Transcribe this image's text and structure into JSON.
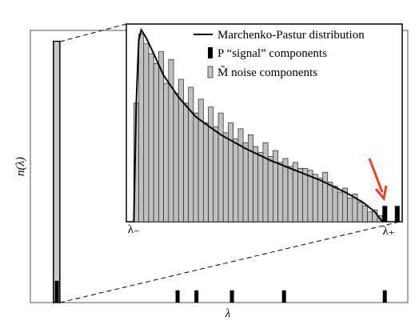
{
  "chart_data": [
    {
      "type": "spectrum",
      "xlabel": "λ",
      "ylabel": "n(λ)",
      "xlim": [
        0,
        1
      ],
      "ylim": [
        0,
        1
      ],
      "color": "#000000",
      "bulk_color": "#c8c8c8",
      "bulk": {
        "x": [
          0.061,
          0.078
        ],
        "value": 0.96
      },
      "spikes": {
        "x": [
          0.07,
          0.39,
          0.44,
          0.534,
          0.672,
          0.939
        ],
        "values": [
          0.08,
          0.045,
          0.045,
          0.045,
          0.045,
          0.045
        ]
      }
    },
    {
      "type": "histogram",
      "xlim": [
        -0.03,
        1.08
      ],
      "ylim": [
        0,
        1
      ],
      "color": "#c0c0c0",
      "bins": [
        0,
        0.02,
        0.04,
        0.06,
        0.08,
        0.1,
        0.12,
        0.14,
        0.16,
        0.18,
        0.2,
        0.22,
        0.24,
        0.26,
        0.28,
        0.3,
        0.32,
        0.34,
        0.36,
        0.38,
        0.4,
        0.42,
        0.44,
        0.46,
        0.48,
        0.5,
        0.52,
        0.54,
        0.56,
        0.58,
        0.6,
        0.62,
        0.64,
        0.66,
        0.68,
        0.7,
        0.72,
        0.74,
        0.76,
        0.78,
        0.8,
        0.82,
        0.84,
        0.86,
        0.88,
        0.9,
        0.92,
        0.94,
        0.96,
        0.98,
        1
      ],
      "values": [
        0.6,
        0.95,
        0.9,
        0.85,
        0.8,
        0.86,
        0.7,
        0.82,
        0.65,
        0.72,
        0.6,
        0.68,
        0.55,
        0.62,
        0.5,
        0.58,
        0.48,
        0.55,
        0.45,
        0.5,
        0.42,
        0.47,
        0.4,
        0.44,
        0.38,
        0.35,
        0.4,
        0.33,
        0.36,
        0.3,
        0.32,
        0.28,
        0.3,
        0.27,
        0.27,
        0.26,
        0.24,
        0.22,
        0.25,
        0.2,
        0.18,
        0.15,
        0.17,
        0.12,
        0.14,
        0.1,
        0.08,
        0.05,
        0.06,
        0.03
      ],
      "curve": {
        "name": "Marchenko-Pastur distribution",
        "color": "#000000",
        "x": [
          0,
          0.01,
          0.02,
          0.03,
          0.05,
          0.08,
          0.12,
          0.18,
          0.25,
          0.35,
          0.45,
          0.55,
          0.65,
          0.75,
          0.85,
          0.92,
          0.97,
          1.0
        ],
        "y": [
          0,
          0.6,
          0.92,
          0.97,
          0.93,
          0.85,
          0.74,
          0.63,
          0.53,
          0.44,
          0.37,
          0.31,
          0.26,
          0.21,
          0.15,
          0.1,
          0.05,
          0
        ]
      },
      "signal": {
        "name": "P “signal” components",
        "color": "#000000",
        "x": [
          1.01,
          1.06
        ],
        "values": [
          0.08,
          0.08
        ]
      },
      "noise_name": "M̃ noise components",
      "edge_labels": [
        "λ₋",
        "λ₊"
      ]
    }
  ]
}
